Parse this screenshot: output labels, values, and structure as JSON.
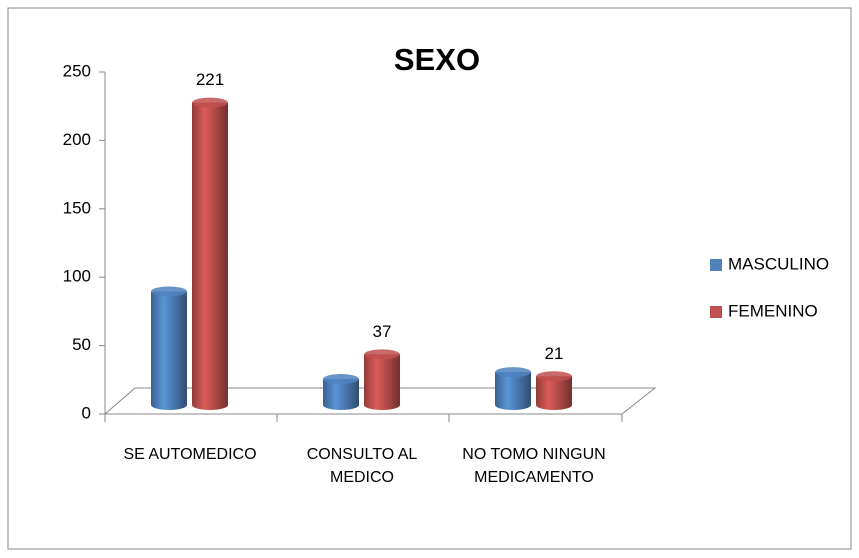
{
  "chart_data": {
    "type": "bar3d",
    "title": "SEXO",
    "categories": [
      "SE AUTOMEDICO",
      "CONSULTO AL MEDICO",
      "NO TOMO NINGUN MEDICAMENTO"
    ],
    "series": [
      {
        "name": "MASCULINO",
        "color": "#4f81bd",
        "values": [
          83,
          19,
          24
        ],
        "data_labels": false
      },
      {
        "name": "FEMENINO",
        "color": "#c0504d",
        "values": [
          221,
          37,
          21
        ],
        "data_labels": true
      }
    ],
    "ylim": [
      0,
      250
    ],
    "yticks": [
      0,
      50,
      100,
      150,
      200,
      250
    ],
    "grid": false,
    "legend": "right"
  }
}
